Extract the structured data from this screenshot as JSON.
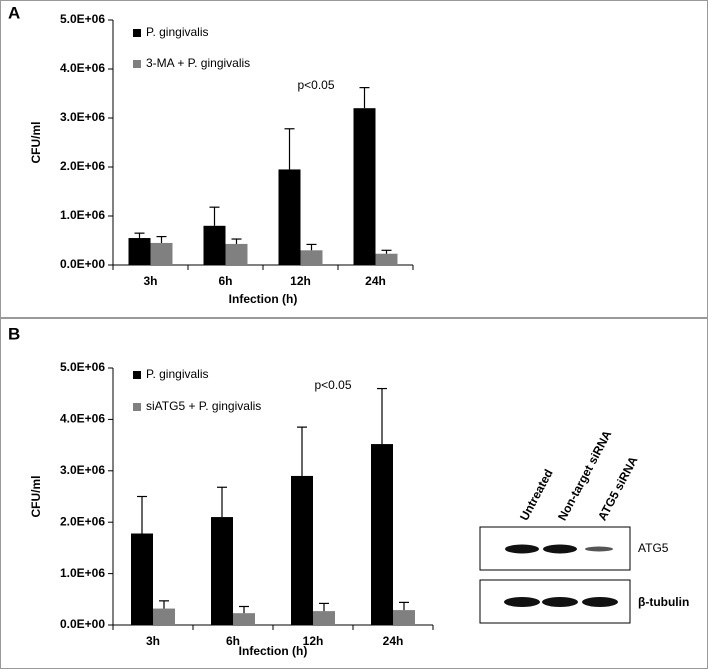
{
  "chart_data": [
    {
      "type": "bar",
      "panel": "A",
      "ylabel": "CFU/ml",
      "xlabel": "Infection (h)",
      "annotation": "p<0.05",
      "categories": [
        "3h",
        "6h",
        "12h",
        "24h"
      ],
      "series": [
        {
          "name": "P. gingivalis",
          "color": "#000000",
          "values": [
            550000,
            800000,
            1950000,
            3200000
          ],
          "errors": [
            100000,
            380000,
            830000,
            420000
          ]
        },
        {
          "name": "3-MA + P. gingivalis",
          "color": "#808080",
          "values": [
            450000,
            430000,
            300000,
            230000
          ],
          "errors": [
            130000,
            100000,
            120000,
            70000
          ]
        }
      ],
      "ylim": [
        0,
        5000000
      ],
      "yticks": [
        {
          "value": 0,
          "label": "0.0E+00"
        },
        {
          "value": 1000000,
          "label": "1.0E+06"
        },
        {
          "value": 2000000,
          "label": "2.0E+06"
        },
        {
          "value": 3000000,
          "label": "3.0E+06"
        },
        {
          "value": 4000000,
          "label": "4.0E+06"
        },
        {
          "value": 5000000,
          "label": "5.0E+06"
        }
      ]
    },
    {
      "type": "bar",
      "panel": "B",
      "ylabel": "CFU/ml",
      "xlabel": "Infection (h)",
      "annotation": "p<0.05",
      "categories": [
        "3h",
        "6h",
        "12h",
        "24h"
      ],
      "series": [
        {
          "name": "P. gingivalis",
          "color": "#000000",
          "values": [
            1780000,
            2100000,
            2900000,
            3520000
          ],
          "errors": [
            720000,
            580000,
            950000,
            1080000
          ]
        },
        {
          "name": "siATG5 + P. gingivalis",
          "color": "#808080",
          "values": [
            320000,
            230000,
            270000,
            290000
          ],
          "errors": [
            150000,
            130000,
            150000,
            150000
          ]
        }
      ],
      "ylim": [
        0,
        5000000
      ],
      "yticks": [
        {
          "value": 0,
          "label": "0.0E+00"
        },
        {
          "value": 1000000,
          "label": "1.0E+06"
        },
        {
          "value": 2000000,
          "label": "2.0E+06"
        },
        {
          "value": 3000000,
          "label": "3.0E+06"
        },
        {
          "value": 4000000,
          "label": "4.0E+06"
        },
        {
          "value": 5000000,
          "label": "5.0E+06"
        }
      ]
    }
  ],
  "blot": {
    "columns": [
      "Untreated",
      "Non-target siRNA",
      "ATG5 siRNA"
    ],
    "rows": [
      "ATG5",
      "β-tubulin"
    ]
  }
}
